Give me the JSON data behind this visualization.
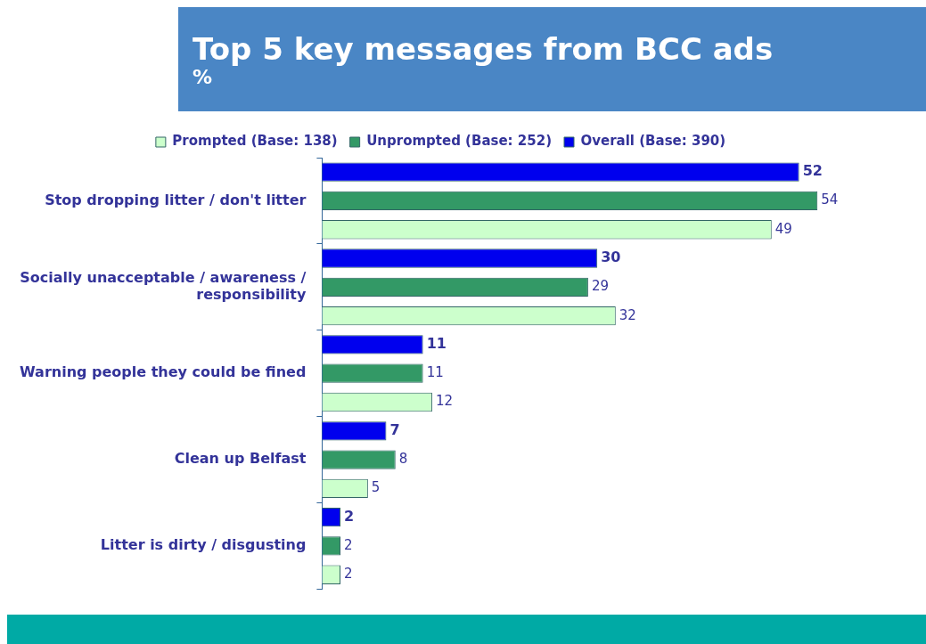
{
  "chart_data": {
    "type": "bar",
    "orientation": "horizontal",
    "title": "Top 5 key messages from BCC ads",
    "subtitle": "%",
    "categories": [
      "Stop dropping litter / don't litter",
      "Socially unacceptable / awareness / responsibility",
      "Warning people they could be fined",
      "Clean up Belfast",
      "Litter is dirty / disgusting"
    ],
    "series": [
      {
        "name": "Overall (Base: 390)",
        "color": "#0000ee",
        "values": [
          52,
          30,
          11,
          7,
          2
        ]
      },
      {
        "name": "Unprompted (Base: 252)",
        "color": "#339966",
        "values": [
          54,
          29,
          11,
          8,
          2
        ]
      },
      {
        "name": "Prompted (Base: 138)",
        "color": "#ccffcc",
        "values": [
          49,
          32,
          12,
          5,
          2
        ]
      }
    ],
    "data_labels": true,
    "legend": "top",
    "grid": false
  }
}
